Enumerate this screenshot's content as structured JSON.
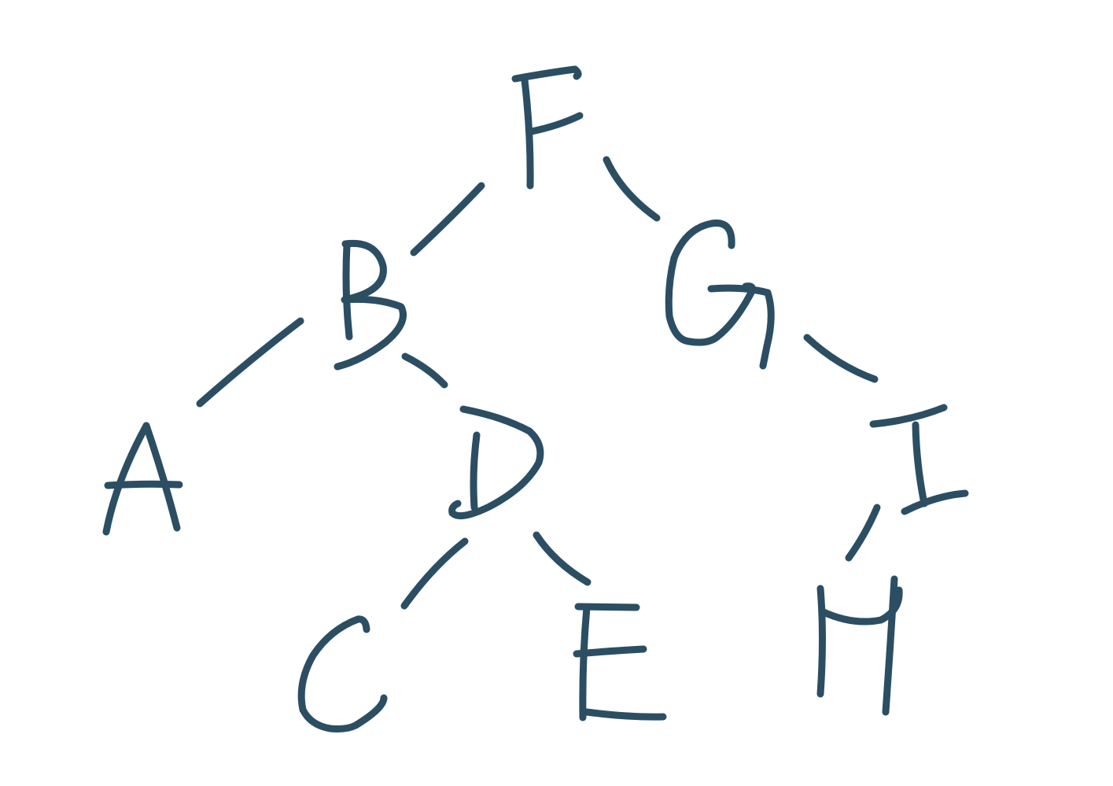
{
  "diagram": {
    "type": "binary-tree",
    "ink_color": "#2b4e63",
    "background_color": "#ffffff",
    "root": "F",
    "nodes": [
      {
        "id": "F",
        "label": "F"
      },
      {
        "id": "B",
        "label": "B"
      },
      {
        "id": "G",
        "label": "G"
      },
      {
        "id": "A",
        "label": "A"
      },
      {
        "id": "D",
        "label": "D"
      },
      {
        "id": "I",
        "label": "I"
      },
      {
        "id": "C",
        "label": "C"
      },
      {
        "id": "E",
        "label": "E"
      },
      {
        "id": "H",
        "label": "H"
      }
    ],
    "edges": [
      {
        "from": "F",
        "to": "B"
      },
      {
        "from": "F",
        "to": "G"
      },
      {
        "from": "B",
        "to": "A"
      },
      {
        "from": "B",
        "to": "D"
      },
      {
        "from": "G",
        "to": "I"
      },
      {
        "from": "D",
        "to": "C"
      },
      {
        "from": "D",
        "to": "E"
      },
      {
        "from": "I",
        "to": "H"
      }
    ]
  }
}
